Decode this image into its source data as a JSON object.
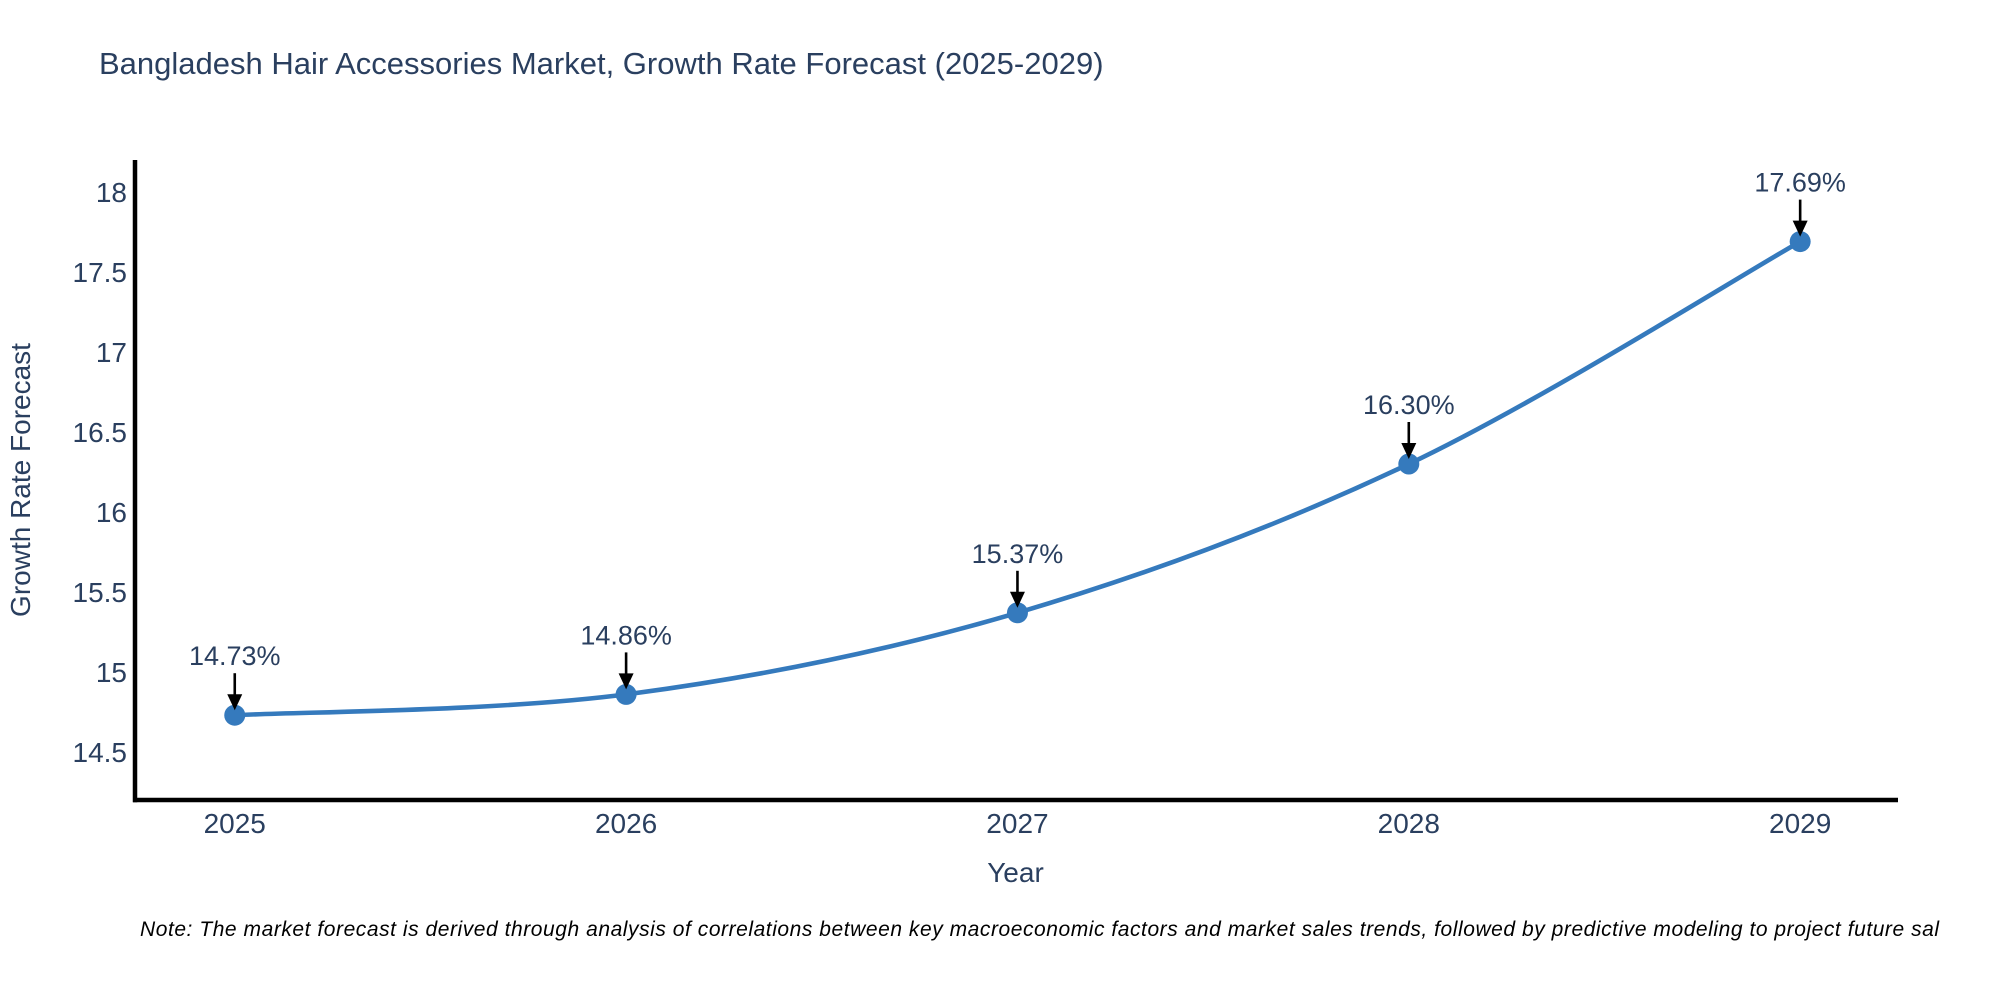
{
  "note": "Note: The market forecast is derived through analysis of correlations between key macroeconomic factors and market sales trends, followed by predictive modeling to project future sal",
  "colors": {
    "line": "#357abd",
    "marker": "#357abd",
    "axis": "#000000",
    "text": "#2a3f5f",
    "annotation_arrow": "#000000",
    "note_text": "#000000",
    "background": "#ffffff"
  },
  "chart_data": {
    "type": "line",
    "title": "Bangladesh Hair Accessories Market, Growth Rate Forecast (2025-2029)",
    "x": [
      2025,
      2026,
      2027,
      2028,
      2029
    ],
    "values": [
      14.73,
      14.86,
      15.37,
      16.3,
      17.69
    ],
    "point_labels": [
      "14.73%",
      "14.86%",
      "15.37%",
      "16.30%",
      "17.69%"
    ],
    "xlabel": "Year",
    "ylabel": "Growth Rate Forecast",
    "xticks": [
      "2025",
      "2026",
      "2027",
      "2028",
      "2029"
    ],
    "xtick_positions": [
      2025,
      2026,
      2027,
      2028,
      2029
    ],
    "yticks": [
      "18",
      "17.5",
      "17",
      "16.5",
      "16",
      "15.5",
      "15",
      "14.5"
    ],
    "ytick_positions": [
      18,
      17.5,
      17,
      16.5,
      16,
      15.5,
      15,
      14.5
    ],
    "xlim": [
      2024.74,
      2029.25
    ],
    "ylim": [
      14.2,
      18.2
    ],
    "grid": false,
    "legend": false,
    "line_shape": "spline"
  }
}
